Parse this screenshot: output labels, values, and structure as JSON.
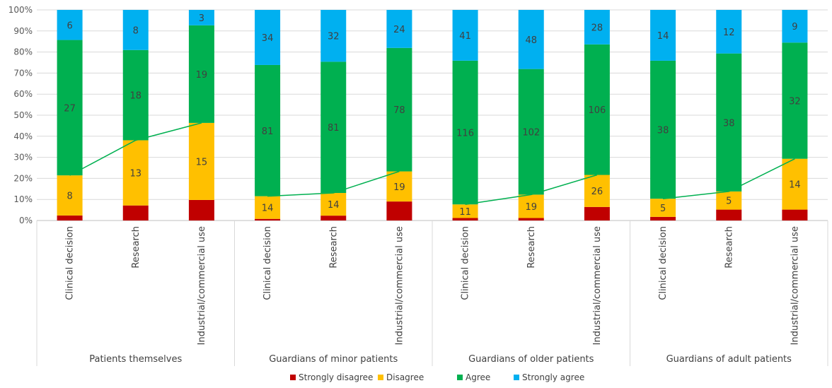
{
  "chart_data": {
    "type": "bar",
    "stacked": true,
    "normalized": true,
    "title": "",
    "xlabel": "",
    "ylabel": "",
    "ylim": [
      0,
      100
    ],
    "yticks": [
      "0%",
      "10%",
      "20%",
      "30%",
      "40%",
      "50%",
      "60%",
      "70%",
      "80%",
      "90%",
      "100%"
    ],
    "groups": [
      "Patients themselves",
      "Guardians of minor patients",
      "Guardians of older patients",
      "Guardians of adult patients"
    ],
    "categories": [
      "Clinical decision",
      "Research",
      "Industrial/commercial use"
    ],
    "series": [
      {
        "name": "Strongly disagree",
        "color": "#c00000",
        "counts": [
          [
            1,
            3,
            4
          ],
          [
            1,
            3,
            12
          ],
          [
            2,
            2,
            11
          ],
          [
            1,
            3,
            3
          ]
        ],
        "labels": [
          [
            "",
            "",
            ""
          ],
          [
            "",
            "",
            ""
          ],
          [
            "",
            "",
            ""
          ],
          [
            "",
            "",
            ""
          ]
        ]
      },
      {
        "name": "Disagree",
        "color": "#ffc000",
        "counts": [
          [
            8,
            13,
            15
          ],
          [
            14,
            14,
            19
          ],
          [
            11,
            19,
            26
          ],
          [
            5,
            5,
            14
          ]
        ],
        "labels": [
          [
            "8",
            "13",
            "15"
          ],
          [
            "14",
            "14",
            "19"
          ],
          [
            "11",
            "19",
            "26"
          ],
          [
            "5",
            "5",
            "14"
          ]
        ]
      },
      {
        "name": "Agree",
        "color": "#00b050",
        "counts": [
          [
            27,
            18,
            19
          ],
          [
            81,
            81,
            78
          ],
          [
            116,
            102,
            106
          ],
          [
            38,
            38,
            32
          ]
        ],
        "labels": [
          [
            "27",
            "18",
            "19"
          ],
          [
            "81",
            "81",
            "78"
          ],
          [
            "116",
            "102",
            "106"
          ],
          [
            "38",
            "38",
            "32"
          ]
        ]
      },
      {
        "name": "Strongly agree",
        "color": "#00b0f0",
        "counts": [
          [
            6,
            8,
            3
          ],
          [
            34,
            32,
            24
          ],
          [
            41,
            48,
            28
          ],
          [
            14,
            12,
            9
          ]
        ],
        "labels": [
          [
            "6",
            "8",
            "3"
          ],
          [
            "34",
            "32",
            "24"
          ],
          [
            "41",
            "48",
            "28"
          ],
          [
            "14",
            "12",
            "9"
          ]
        ]
      }
    ],
    "overlay_line": {
      "color": "#00b050",
      "description": "connects top of Disagree segment within each group"
    },
    "legend": {
      "position": "bottom"
    },
    "grid": true
  }
}
